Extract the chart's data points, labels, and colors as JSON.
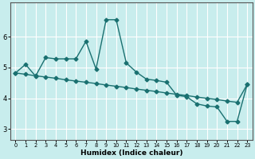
{
  "xlabel": "Humidex (Indice chaleur)",
  "bg_color": "#c8eded",
  "grid_color": "#ffffff",
  "line_color": "#1a7070",
  "line1_x": [
    0,
    1,
    2,
    3,
    4,
    5,
    6,
    7,
    8,
    9,
    10,
    11,
    12,
    13,
    14,
    15,
    16,
    17,
    18,
    19,
    20,
    21,
    22,
    23
  ],
  "line1_y": [
    4.82,
    4.78,
    4.73,
    4.69,
    4.65,
    4.6,
    4.56,
    4.52,
    4.48,
    4.43,
    4.39,
    4.35,
    4.3,
    4.26,
    4.22,
    4.17,
    4.13,
    4.09,
    4.04,
    4.0,
    3.96,
    3.91,
    3.87,
    4.45
  ],
  "line2_x": [
    0,
    1,
    2,
    3,
    4,
    5,
    6,
    7,
    8,
    9,
    10,
    11,
    12,
    13,
    14,
    15,
    16,
    17,
    18,
    19,
    20,
    21,
    22,
    23
  ],
  "line2_y": [
    4.82,
    5.1,
    4.72,
    5.32,
    5.28,
    5.28,
    5.28,
    5.85,
    4.95,
    6.55,
    6.55,
    5.15,
    4.85,
    4.62,
    4.58,
    4.52,
    4.1,
    4.05,
    3.82,
    3.75,
    3.72,
    3.25,
    3.25,
    4.45
  ],
  "xlim": [
    -0.5,
    23.5
  ],
  "ylim": [
    2.65,
    7.1
  ],
  "xticks": [
    0,
    1,
    2,
    3,
    4,
    5,
    6,
    7,
    8,
    9,
    10,
    11,
    12,
    13,
    14,
    15,
    16,
    17,
    18,
    19,
    20,
    21,
    22,
    23
  ],
  "yticks": [
    3,
    4,
    5,
    6
  ],
  "marker_size": 2.5,
  "linewidth": 1.0
}
